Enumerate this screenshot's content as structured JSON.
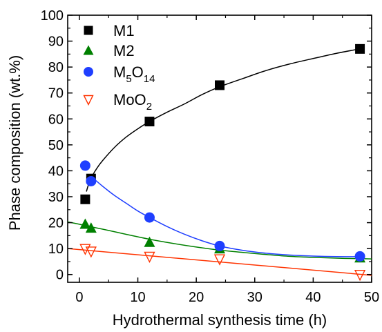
{
  "chart_data": {
    "type": "scatter",
    "xlabel": "Hydrothermal synthesis time (h)",
    "ylabel": "Phase composition (wt.%)",
    "xlim": [
      -2,
      50
    ],
    "ylim": [
      -3,
      100
    ],
    "xticks": [
      0,
      10,
      20,
      30,
      40,
      50
    ],
    "yticks": [
      0,
      10,
      20,
      30,
      40,
      50,
      60,
      70,
      80,
      90,
      100
    ],
    "legend_position": "top-left",
    "series": [
      {
        "name": "M1",
        "name_parts": {
          "base": "M1",
          "sub": "",
          "suffix": ""
        },
        "marker": "square",
        "color": "#000000",
        "fill": true,
        "x": [
          1,
          2,
          12,
          24,
          48
        ],
        "y": [
          29,
          37,
          59,
          73,
          87
        ],
        "fit": {
          "color": "#000000",
          "x": [
            1.2,
            1.6,
            2,
            3,
            4,
            6,
            8,
            10,
            12,
            15,
            18,
            21,
            24,
            28,
            32,
            36,
            40,
            44,
            48
          ],
          "y": [
            32,
            35,
            37.2,
            41,
            44,
            49,
            53,
            56.2,
            59,
            62.6,
            65.8,
            69.4,
            72.4,
            75.6,
            78.7,
            81.2,
            83.3,
            85.3,
            87
          ]
        }
      },
      {
        "name": "M2",
        "name_parts": {
          "base": "M2",
          "sub": "",
          "suffix": ""
        },
        "marker": "triangle-up",
        "color": "#008000",
        "fill": true,
        "x": [
          1,
          2,
          12,
          24,
          48
        ],
        "y": [
          19.5,
          18,
          12.5,
          10,
          6.5
        ],
        "fit": {
          "color": "#008000",
          "x": [
            -2,
            0,
            2,
            5,
            8,
            12,
            16,
            20,
            24,
            28,
            32,
            36,
            40,
            44,
            48,
            50
          ],
          "y": [
            20.3,
            19.4,
            18.4,
            17,
            15.5,
            13.6,
            12,
            10.6,
            9.4,
            8.5,
            7.7,
            7,
            6.6,
            6.3,
            6.1,
            6
          ]
        }
      },
      {
        "name": "M5O14",
        "name_parts": {
          "base": "M",
          "sub": "5",
          "suffix": "O",
          "sub2": "14"
        },
        "marker": "circle",
        "color": "#1f3fff",
        "fill": true,
        "x": [
          1,
          2,
          12,
          24,
          48
        ],
        "y": [
          42,
          36,
          22,
          11,
          7
        ],
        "fit": {
          "color": "#1f3fff",
          "x": [
            1.5,
            2,
            4,
            6,
            8,
            10,
            12,
            15,
            18,
            21,
            24,
            28,
            32,
            36,
            40,
            44,
            48
          ],
          "y": [
            38.5,
            37.8,
            34,
            30.5,
            27.5,
            24.5,
            22,
            18.5,
            15.5,
            13,
            11,
            9.3,
            8.2,
            7.5,
            7.1,
            6.9,
            6.9
          ]
        }
      },
      {
        "name": "MoO2",
        "name_parts": {
          "base": "MoO",
          "sub": "2",
          "suffix": ""
        },
        "marker": "triangle-down",
        "color": "#ff3300",
        "fill": false,
        "x": [
          1,
          2,
          12,
          24,
          48
        ],
        "y": [
          10,
          9,
          7,
          6,
          0
        ],
        "fit": {
          "color": "#ff3300",
          "x": [
            -2,
            50
          ],
          "y": [
            10,
            -0.3
          ]
        }
      }
    ]
  }
}
